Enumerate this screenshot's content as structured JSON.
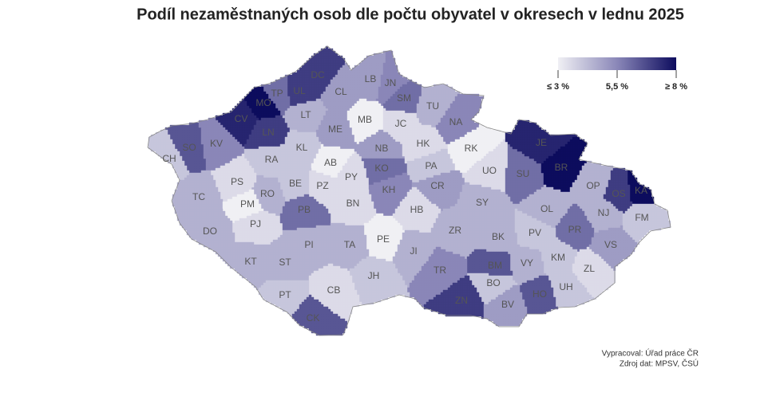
{
  "title": "Podíl nezaměstnaných osob dle počtu obyvatel v okresech v lednu 2025",
  "legend": {
    "ticks": [
      {
        "value": 3,
        "label": "≤ 3 %"
      },
      {
        "value": 5.5,
        "label": "5,5 %"
      },
      {
        "value": 8,
        "label": "≥ 8 %"
      }
    ]
  },
  "districts": [
    {
      "code": "DC",
      "value": 7
    },
    {
      "code": "UL",
      "value": 7
    },
    {
      "code": "TP",
      "value": 6
    },
    {
      "code": "MO",
      "value": 8
    },
    {
      "code": "CV",
      "value": 7.5
    },
    {
      "code": "LN",
      "value": 7
    },
    {
      "code": "SO",
      "value": 6.5
    },
    {
      "code": "KV",
      "value": 5.5
    },
    {
      "code": "CH",
      "value": 4
    },
    {
      "code": "LT",
      "value": 4.5
    },
    {
      "code": "CL",
      "value": 5
    },
    {
      "code": "LB",
      "value": 5
    },
    {
      "code": "JN",
      "value": 5.5
    },
    {
      "code": "SM",
      "value": 6
    },
    {
      "code": "ME",
      "value": 5
    },
    {
      "code": "MB",
      "value": 3
    },
    {
      "code": "JC",
      "value": 3.5
    },
    {
      "code": "TU",
      "value": 4.5
    },
    {
      "code": "NA",
      "value": 5.5
    },
    {
      "code": "KL",
      "value": 4
    },
    {
      "code": "RA",
      "value": 4
    },
    {
      "code": "AB",
      "value": 3
    },
    {
      "code": "PY",
      "value": 3.5
    },
    {
      "code": "PZ",
      "value": 3.5
    },
    {
      "code": "BE",
      "value": 4
    },
    {
      "code": "RO",
      "value": 4.5
    },
    {
      "code": "PS",
      "value": 3.5
    },
    {
      "code": "TC",
      "value": 4.5
    },
    {
      "code": "PM",
      "value": 3
    },
    {
      "code": "PJ",
      "value": 3.5
    },
    {
      "code": "DO",
      "value": 4.5
    },
    {
      "code": "NB",
      "value": 5
    },
    {
      "code": "KO",
      "value": 6
    },
    {
      "code": "HK",
      "value": 3.5
    },
    {
      "code": "PA",
      "value": 4
    },
    {
      "code": "RK",
      "value": 3
    },
    {
      "code": "KH",
      "value": 5.5
    },
    {
      "code": "CR",
      "value": 5
    },
    {
      "code": "UO",
      "value": 3.5
    },
    {
      "code": "SU",
      "value": 6
    },
    {
      "code": "JE",
      "value": 7.5
    },
    {
      "code": "BR",
      "value": 8
    },
    {
      "code": "OP",
      "value": 4.5
    },
    {
      "code": "KA",
      "value": 8
    },
    {
      "code": "OS",
      "value": 7
    },
    {
      "code": "NJ",
      "value": 4.5
    },
    {
      "code": "FM",
      "value": 4
    },
    {
      "code": "OL",
      "value": 4.5
    },
    {
      "code": "PR",
      "value": 6
    },
    {
      "code": "VS",
      "value": 5
    },
    {
      "code": "BN",
      "value": 3.5
    },
    {
      "code": "PB",
      "value": 6
    },
    {
      "code": "HB",
      "value": 3.5
    },
    {
      "code": "SY",
      "value": 4.5
    },
    {
      "code": "ZR",
      "value": 4.5
    },
    {
      "code": "BK",
      "value": 4.5
    },
    {
      "code": "PV",
      "value": 4
    },
    {
      "code": "PE",
      "value": 3
    },
    {
      "code": "JI",
      "value": 4.5
    },
    {
      "code": "TA",
      "value": 4.5
    },
    {
      "code": "PI",
      "value": 4.5
    },
    {
      "code": "ST",
      "value": 4.5
    },
    {
      "code": "KT",
      "value": 4.5
    },
    {
      "code": "KM",
      "value": 4
    },
    {
      "code": "ZL",
      "value": 3.5
    },
    {
      "code": "VY",
      "value": 4.5
    },
    {
      "code": "BM",
      "value": 6.5
    },
    {
      "code": "BO",
      "value": 4
    },
    {
      "code": "TR",
      "value": 5.5
    },
    {
      "code": "JH",
      "value": 4
    },
    {
      "code": "CB",
      "value": 3.5
    },
    {
      "code": "PT",
      "value": 4
    },
    {
      "code": "UH",
      "value": 4
    },
    {
      "code": "HO",
      "value": 6.5
    },
    {
      "code": "ZN",
      "value": 7
    },
    {
      "code": "BV",
      "value": 5
    },
    {
      "code": "CK",
      "value": 6.5
    }
  ],
  "source": [
    "Vypracoval: Úřad práce ČR",
    "Zdroj dat: MPSV, ČSÚ"
  ]
}
